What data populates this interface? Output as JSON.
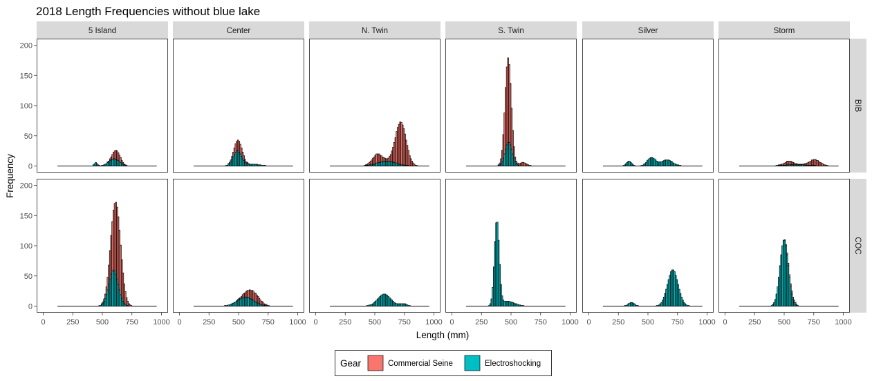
{
  "chart_data": {
    "type": "histogram",
    "title": "2018 Length Frequencies without blue lake",
    "xlabel": "Length (mm)",
    "ylabel": "Frequency",
    "xlim": [
      0,
      1000
    ],
    "ylim": [
      0,
      200
    ],
    "x_ticks": [
      "0",
      "250",
      "500",
      "750",
      "1000"
    ],
    "y_ticks": [
      "0",
      "50",
      "100",
      "150",
      "200"
    ],
    "columns": [
      "5 Island",
      "Center",
      "N. Twin",
      "S. Twin",
      "Silver",
      "Storm"
    ],
    "rows": [
      "BIB",
      "COC"
    ],
    "legend": {
      "title": "Gear",
      "position": "bottom",
      "items": [
        {
          "label": "Commercial Seine",
          "color": "#F8766D"
        },
        {
          "label": "Electroshocking",
          "color": "#00BFC4"
        }
      ]
    },
    "bin_width": 10,
    "x_range": [
      120,
      960
    ],
    "panels": [
      {
        "column": "5 Island",
        "row": "BIB",
        "components": [
          {
            "gear": "Electroshocking",
            "mean": 600,
            "sd": 45,
            "peak": 12
          },
          {
            "gear": "Commercial Seine",
            "mean": 620,
            "sd": 30,
            "peak": 15
          },
          {
            "gear": "Electroshocking",
            "mean": 445,
            "sd": 12,
            "peak": 6
          }
        ]
      },
      {
        "column": "5 Island",
        "row": "COC",
        "components": [
          {
            "gear": "Electroshocking",
            "mean": 595,
            "sd": 40,
            "peak": 60
          },
          {
            "gear": "Commercial Seine",
            "mean": 620,
            "sd": 40,
            "peak": 120
          }
        ]
      },
      {
        "column": "Center",
        "row": "BIB",
        "components": [
          {
            "gear": "Electroshocking",
            "mean": 490,
            "sd": 35,
            "peak": 25
          },
          {
            "gear": "Commercial Seine",
            "mean": 500,
            "sd": 35,
            "peak": 18
          },
          {
            "gear": "Electroshocking",
            "mean": 620,
            "sd": 60,
            "peak": 3
          }
        ]
      },
      {
        "column": "Center",
        "row": "COC",
        "components": [
          {
            "gear": "Electroshocking",
            "mean": 560,
            "sd": 70,
            "peak": 15
          },
          {
            "gear": "Commercial Seine",
            "mean": 620,
            "sd": 55,
            "peak": 15
          }
        ]
      },
      {
        "column": "N. Twin",
        "row": "BIB",
        "components": [
          {
            "gear": "Electroshocking",
            "mean": 600,
            "sd": 80,
            "peak": 8
          },
          {
            "gear": "Commercial Seine",
            "mean": 720,
            "sd": 45,
            "peak": 70
          },
          {
            "gear": "Commercial Seine",
            "mean": 520,
            "sd": 40,
            "peak": 15
          }
        ]
      },
      {
        "column": "N. Twin",
        "row": "COC",
        "components": [
          {
            "gear": "Electroshocking",
            "mean": 580,
            "sd": 55,
            "peak": 20
          },
          {
            "gear": "Electroshocking",
            "mean": 740,
            "sd": 30,
            "peak": 4
          }
        ]
      },
      {
        "column": "S. Twin",
        "row": "BIB",
        "components": [
          {
            "gear": "Electroshocking",
            "mean": 480,
            "sd": 30,
            "peak": 40
          },
          {
            "gear": "Commercial Seine",
            "mean": 475,
            "sd": 25,
            "peak": 140
          },
          {
            "gear": "Commercial Seine",
            "mean": 600,
            "sd": 30,
            "peak": 6
          }
        ]
      },
      {
        "column": "S. Twin",
        "row": "COC",
        "components": [
          {
            "gear": "Electroshocking",
            "mean": 380,
            "sd": 20,
            "peak": 140
          },
          {
            "gear": "Electroshocking",
            "mean": 470,
            "sd": 60,
            "peak": 8
          }
        ]
      },
      {
        "column": "Silver",
        "row": "BIB",
        "components": [
          {
            "gear": "Electroshocking",
            "mean": 340,
            "sd": 20,
            "peak": 8
          },
          {
            "gear": "Electroshocking",
            "mean": 530,
            "sd": 35,
            "peak": 14
          },
          {
            "gear": "Electroshocking",
            "mean": 660,
            "sd": 50,
            "peak": 10
          }
        ]
      },
      {
        "column": "Silver",
        "row": "COC",
        "components": [
          {
            "gear": "Electroshocking",
            "mean": 710,
            "sd": 45,
            "peak": 60
          },
          {
            "gear": "Electroshocking",
            "mean": 360,
            "sd": 25,
            "peak": 6
          }
        ]
      },
      {
        "column": "Storm",
        "row": "BIB",
        "components": [
          {
            "gear": "Electroshocking",
            "mean": 600,
            "sd": 100,
            "peak": 2
          },
          {
            "gear": "Commercial Seine",
            "mean": 760,
            "sd": 45,
            "peak": 10
          },
          {
            "gear": "Commercial Seine",
            "mean": 540,
            "sd": 40,
            "peak": 6
          }
        ]
      },
      {
        "column": "Storm",
        "row": "COC",
        "components": [
          {
            "gear": "Electroshocking",
            "mean": 500,
            "sd": 35,
            "peak": 110
          },
          {
            "gear": "Commercial Seine",
            "mean": 560,
            "sd": 30,
            "peak": 5
          }
        ]
      }
    ]
  }
}
